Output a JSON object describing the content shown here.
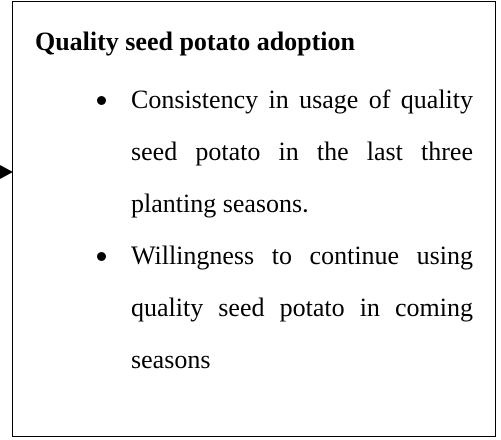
{
  "box": {
    "title": "Quality seed potato adoption",
    "items": [
      "Consistency in usage of quality seed potato in the last three planting seasons.",
      "Willingness to continue using quality seed potato in coming seasons"
    ]
  }
}
